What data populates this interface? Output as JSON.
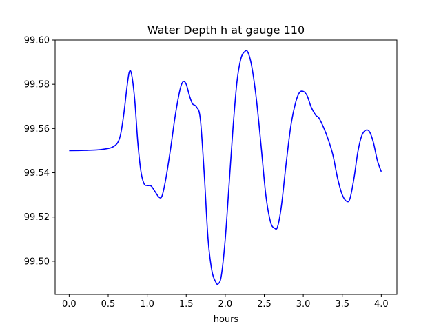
{
  "chart_data": {
    "type": "line",
    "title": "Water Depth h at gauge 110",
    "xlabel": "hours",
    "ylabel": "",
    "xlim": [
      -0.18,
      4.2
    ],
    "ylim": [
      99.485,
      99.6
    ],
    "grid": false,
    "x_ticks": [
      0.0,
      0.5,
      1.0,
      1.5,
      2.0,
      2.5,
      3.0,
      3.5,
      4.0
    ],
    "x_tick_labels": [
      "0.0",
      "0.5",
      "1.0",
      "1.5",
      "2.0",
      "2.5",
      "3.0",
      "3.5",
      "4.0"
    ],
    "y_ticks": [
      99.5,
      99.52,
      99.54,
      99.56,
      99.58,
      99.6
    ],
    "y_tick_labels": [
      "99.50",
      "99.52",
      "99.54",
      "99.56",
      "99.58",
      "99.60"
    ],
    "series": [
      {
        "color": "#0000ff",
        "x": [
          0.0,
          0.2,
          0.35,
          0.45,
          0.55,
          0.62,
          0.66,
          0.7,
          0.74,
          0.77,
          0.8,
          0.84,
          0.88,
          0.92,
          0.96,
          1.0,
          1.05,
          1.1,
          1.15,
          1.19,
          1.24,
          1.3,
          1.36,
          1.42,
          1.46,
          1.5,
          1.54,
          1.58,
          1.63,
          1.68,
          1.73,
          1.78,
          1.83,
          1.88,
          1.91,
          1.95,
          2.0,
          2.05,
          2.1,
          2.15,
          2.2,
          2.25,
          2.29,
          2.34,
          2.4,
          2.46,
          2.52,
          2.58,
          2.63,
          2.67,
          2.72,
          2.78,
          2.84,
          2.9,
          2.95,
          3.0,
          3.05,
          3.1,
          3.16,
          3.2,
          3.26,
          3.32,
          3.38,
          3.44,
          3.5,
          3.56,
          3.6,
          3.65,
          3.7,
          3.75,
          3.8,
          3.85,
          3.9,
          3.95,
          4.0
        ],
        "y": [
          99.55,
          99.5501,
          99.5503,
          99.5507,
          99.5515,
          99.5535,
          99.5575,
          99.5665,
          99.5785,
          99.5855,
          99.5845,
          99.573,
          99.5535,
          99.5405,
          99.535,
          99.5342,
          99.534,
          99.5315,
          99.529,
          99.5295,
          99.5375,
          99.551,
          99.566,
          99.5775,
          99.5812,
          99.58,
          99.575,
          99.5712,
          99.5698,
          99.5645,
          99.54,
          99.51,
          99.4955,
          99.4905,
          99.4898,
          99.4935,
          99.51,
          99.535,
          99.5605,
          99.581,
          99.5915,
          99.5948,
          99.5945,
          99.588,
          99.573,
          99.552,
          99.53,
          99.5178,
          99.515,
          99.5155,
          99.525,
          99.544,
          99.561,
          99.5715,
          99.5762,
          99.5768,
          99.5748,
          99.5698,
          99.566,
          99.5648,
          99.5605,
          99.555,
          99.548,
          99.5375,
          99.53,
          99.527,
          99.5285,
          99.5375,
          99.5495,
          99.5568,
          99.5592,
          99.5585,
          99.5535,
          99.5455,
          99.5405
        ]
      }
    ]
  }
}
